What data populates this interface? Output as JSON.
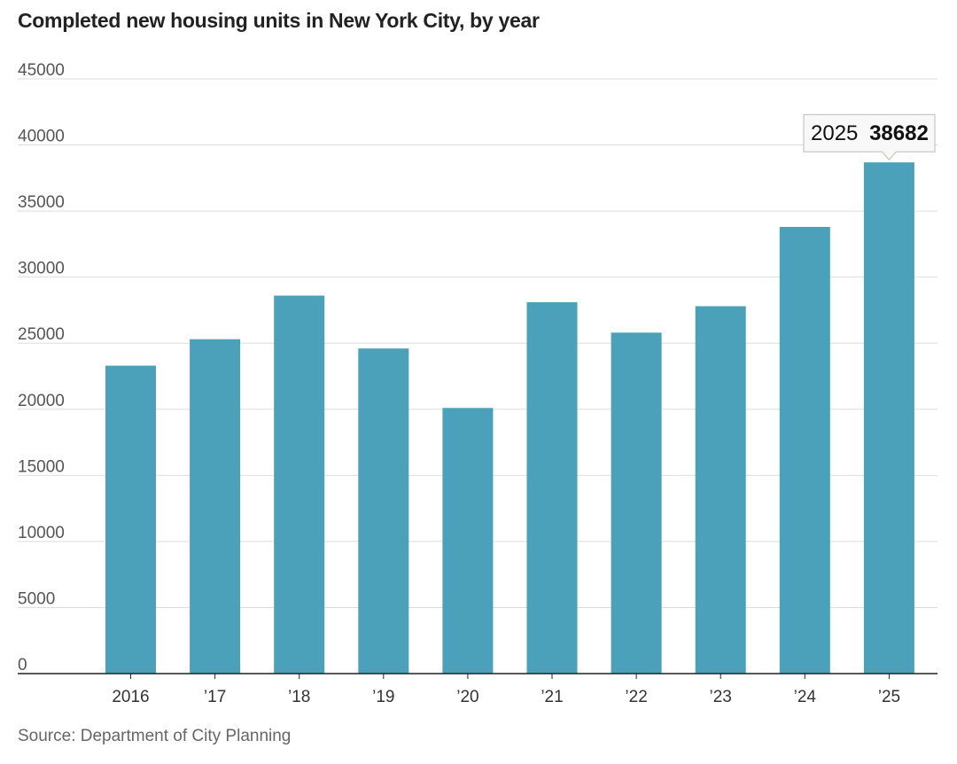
{
  "title": "Completed new housing units in New York City, by year",
  "source": "Source: Department of City Planning",
  "colors": {
    "bar": "#4aa1b9",
    "grid": "#dddddd",
    "axis": "#222222"
  },
  "tooltip": {
    "label": "2025",
    "value": "38682"
  },
  "chart_data": {
    "type": "bar",
    "categories": [
      "2016",
      "’17",
      "’18",
      "’19",
      "’20",
      "’21",
      "’22",
      "’23",
      "’24",
      "’25"
    ],
    "values": [
      23300,
      25300,
      28600,
      24600,
      20100,
      28100,
      25800,
      27800,
      33800,
      38682
    ],
    "ylim": [
      0,
      45000
    ],
    "yticks": [
      0,
      5000,
      10000,
      15000,
      20000,
      25000,
      30000,
      35000,
      40000,
      45000
    ],
    "grid": true,
    "legend": "none"
  }
}
